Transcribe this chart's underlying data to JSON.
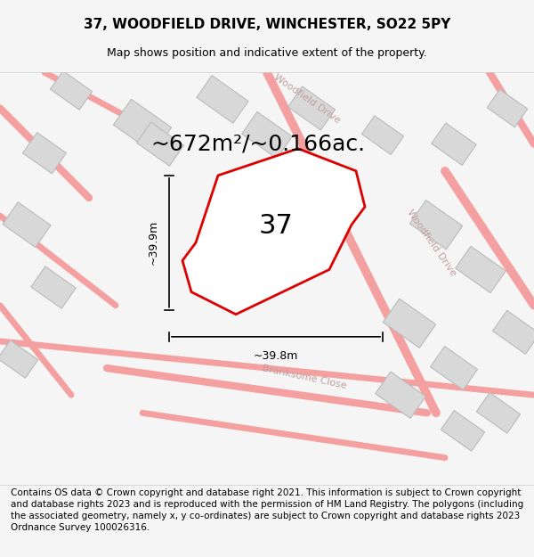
{
  "title": "37, WOODFIELD DRIVE, WINCHESTER, SO22 5PY",
  "subtitle": "Map shows position and indicative extent of the property.",
  "area_text": "~672m²/~0.166ac.",
  "number_label": "37",
  "dim_vertical": "~39.9m",
  "dim_horizontal": "~39.8m",
  "footer_text": "Contains OS data © Crown copyright and database right 2021. This information is subject to Crown copyright and database rights 2023 and is reproduced with the permission of HM Land Registry. The polygons (including the associated geometry, namely x, y co-ordinates) are subject to Crown copyright and database rights 2023 Ordnance Survey 100026316.",
  "bg_color": "#f5f5f5",
  "map_bg": "#ffffff",
  "street_color": "#f5a0a0",
  "building_color": "#d8d8d8",
  "building_edge": "#bbbbbb",
  "plot_color": "#ffffff",
  "plot_edge": "#dd0000",
  "street_label_color": "#c0a0a0",
  "title_fontsize": 11,
  "subtitle_fontsize": 9,
  "area_fontsize": 18,
  "number_fontsize": 22,
  "dim_fontsize": 9,
  "footer_fontsize": 7.5
}
